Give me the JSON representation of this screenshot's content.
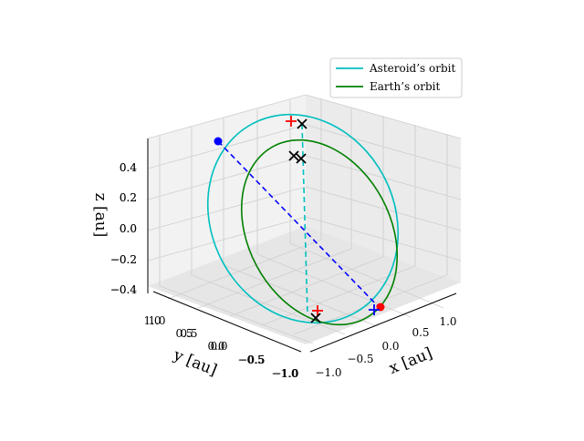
{
  "chart_data": {
    "type": "line",
    "projection": "3d",
    "xlabel": "x [au]",
    "ylabel": "y [au]",
    "zlabel": "z [au]",
    "xlim": [
      -1.2,
      1.2
    ],
    "ylim": [
      -1.2,
      1.2
    ],
    "zlim": [
      -0.45,
      0.55
    ],
    "x_ticks": [
      "−1.0",
      "−0.5",
      "0.0",
      "0.5",
      "1.0"
    ],
    "y_ticks": [
      "1.0",
      "0.5",
      "0.0",
      "−0.5",
      "−1.0"
    ],
    "z_ticks": [
      "0.4",
      "0.2",
      "0.0",
      "−0.2",
      "−0.4"
    ],
    "grid": true,
    "legend_position": "top-right",
    "series": [
      {
        "name": "Asteroid’s orbit",
        "color": "#00bfbf",
        "style": "solid",
        "semi_major_axis": 1.08,
        "eccentricity": 0.12,
        "inclination_deg": 25
      },
      {
        "name": "Earth’s orbit",
        "color": "#008000",
        "style": "solid",
        "semi_major_axis": 1.0,
        "eccentricity": 0.0,
        "inclination_deg": 0
      }
    ],
    "markers": [
      {
        "label": "asteroid-start",
        "symbol": "blue-dot",
        "color": "#0000ff",
        "xyz": [
          -0.9,
          0.6,
          0.45
        ]
      },
      {
        "label": "asteroid-end",
        "symbol": "red-dot",
        "color": "#ff0000",
        "xyz": [
          0.35,
          -1.0,
          -0.45
        ]
      },
      {
        "label": "asteroid-node-top",
        "symbol": "red-plus",
        "color": "#ff0000",
        "xyz": [
          -0.05,
          1.05,
          0.52
        ]
      },
      {
        "label": "asteroid-node-bottom",
        "symbol": "red-plus",
        "color": "#ff0000",
        "xyz": [
          -0.05,
          -1.05,
          -0.45
        ]
      },
      {
        "label": "node-top-x",
        "symbol": "black-x",
        "color": "#000000",
        "xyz": [
          0.05,
          1.05,
          0.52
        ]
      },
      {
        "label": "node-mid-x1",
        "symbol": "black-x",
        "color": "#000000",
        "xyz": [
          0.0,
          0.9,
          0.22
        ]
      },
      {
        "label": "node-mid-x2",
        "symbol": "black-x",
        "color": "#000000",
        "xyz": [
          0.05,
          0.85,
          0.2
        ]
      },
      {
        "label": "node-bottom-x",
        "symbol": "black-x",
        "color": "#000000",
        "xyz": [
          0.05,
          -1.05,
          -0.45
        ]
      },
      {
        "label": "earth-end",
        "symbol": "blue-plus",
        "color": "#0000ff",
        "xyz": [
          0.3,
          -1.0,
          -0.44
        ]
      }
    ],
    "dashed_lines": [
      {
        "color": "#0000ff",
        "from": "asteroid-start",
        "to": "asteroid-end"
      },
      {
        "color": "#00bfbf",
        "from": "node-top-x",
        "to": "node-bottom-x"
      }
    ]
  }
}
